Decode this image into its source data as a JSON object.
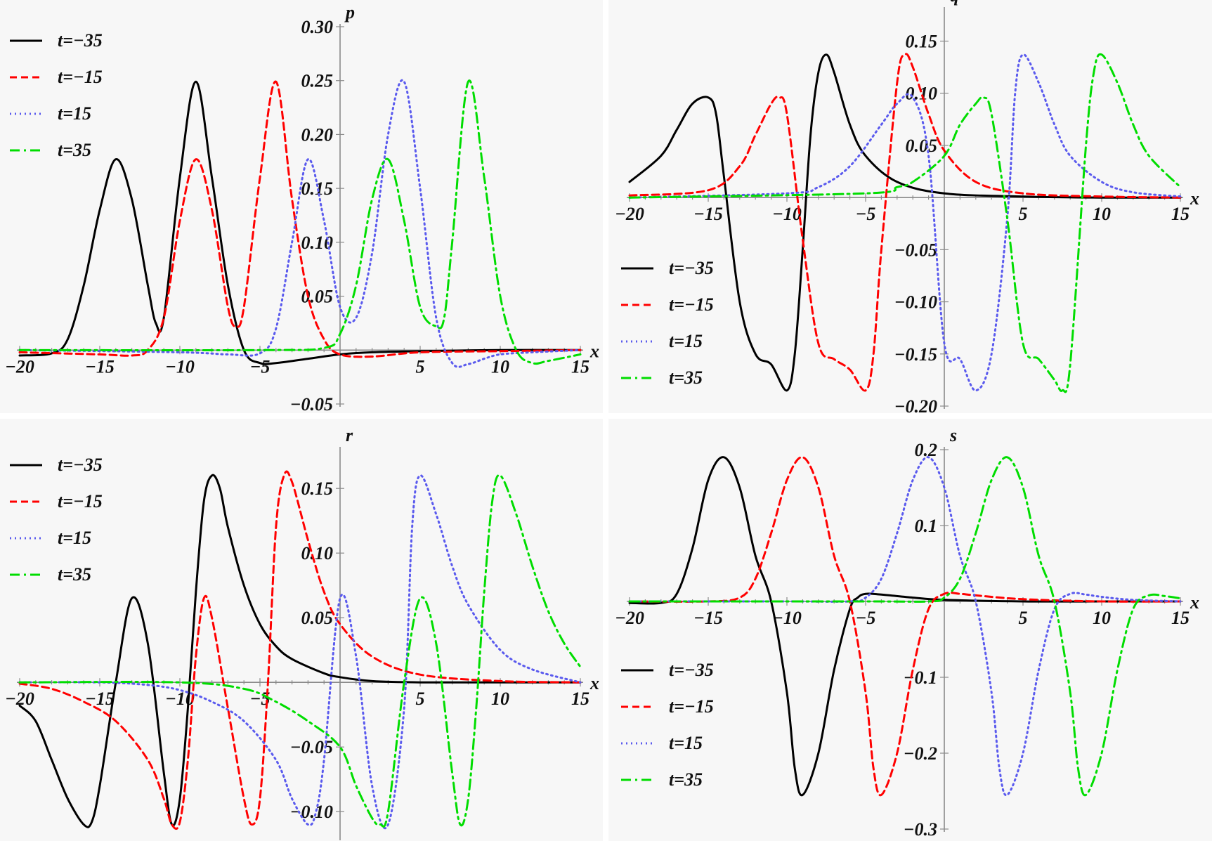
{
  "chart_data": [
    {
      "id": "p",
      "type": "line",
      "ylabel": "p",
      "xlabel": "x",
      "xlim": [
        -20,
        15
      ],
      "ylim": [
        -0.05,
        0.3
      ],
      "xticks": [
        -20,
        -15,
        -10,
        -5,
        5,
        10,
        15
      ],
      "xtick_labels": [
        "−20",
        "−15",
        "−10",
        "−5",
        "5",
        "10",
        "15"
      ],
      "yticks": [
        -0.05,
        0.05,
        0.1,
        0.15,
        0.2,
        0.25,
        0.3
      ],
      "ytick_labels": [
        "−0.05",
        "0.05",
        "0.10",
        "0.15",
        "0.20",
        "0.25",
        "0.30"
      ],
      "legend_position": "top-left",
      "series": [
        {
          "name": "t=−35",
          "color": "#000000",
          "style": "solid",
          "x": [
            -20,
            -18,
            -17,
            -16,
            -15,
            -14,
            -13,
            -12,
            -11.5,
            -11,
            -10,
            -9,
            -8,
            -7,
            -6,
            -5,
            -4,
            -2,
            0,
            2,
            5,
            10,
            15
          ],
          "y": [
            -0.005,
            -0.003,
            0.01,
            0.06,
            0.13,
            0.177,
            0.14,
            0.06,
            0.025,
            0.03,
            0.16,
            0.249,
            0.16,
            0.06,
            0.0,
            -0.012,
            -0.012,
            -0.008,
            -0.004,
            -0.002,
            -0.001,
            0.0,
            0.0
          ]
        },
        {
          "name": "t=−15",
          "color": "#ff0000",
          "style": "dashed",
          "x": [
            -20,
            -15,
            -13,
            -12,
            -11,
            -10,
            -9,
            -8,
            -7,
            -6.5,
            -6,
            -5,
            -4,
            -3,
            -2,
            -1,
            0,
            2,
            5,
            10,
            15
          ],
          "y": [
            -0.002,
            -0.004,
            -0.005,
            0.0,
            0.03,
            0.12,
            0.177,
            0.13,
            0.04,
            0.022,
            0.04,
            0.16,
            0.249,
            0.14,
            0.05,
            0.01,
            -0.004,
            -0.006,
            -0.002,
            -0.001,
            0.0
          ]
        },
        {
          "name": "t=15",
          "color": "#5a5aee",
          "style": "dotted",
          "x": [
            -20,
            -10,
            -7,
            -5,
            -4,
            -3,
            -2,
            -1,
            0,
            1,
            2,
            3,
            4,
            5,
            6,
            7,
            8,
            9,
            10,
            12,
            15
          ],
          "y": [
            0.0,
            -0.002,
            -0.004,
            -0.003,
            0.02,
            0.1,
            0.177,
            0.12,
            0.04,
            0.03,
            0.09,
            0.2,
            0.249,
            0.15,
            0.03,
            -0.012,
            -0.013,
            -0.008,
            -0.004,
            -0.002,
            0.0
          ]
        },
        {
          "name": "t=35",
          "color": "#00dd00",
          "style": "dashdot",
          "x": [
            -20,
            -5,
            -1,
            0,
            1,
            2,
            3,
            4,
            5,
            6,
            6.5,
            7,
            8,
            9,
            10,
            11,
            12,
            13,
            15
          ],
          "y": [
            0.0,
            0.0,
            0.002,
            0.015,
            0.06,
            0.14,
            0.177,
            0.12,
            0.04,
            0.022,
            0.03,
            0.1,
            0.249,
            0.16,
            0.05,
            0.0,
            -0.012,
            -0.01,
            -0.004
          ]
        }
      ]
    },
    {
      "id": "q",
      "type": "line",
      "ylabel": "q",
      "xlabel": "x",
      "xlim": [
        -20,
        15
      ],
      "ylim": [
        -0.2,
        0.18
      ],
      "xticks": [
        -20,
        -15,
        -10,
        -5,
        5,
        10,
        15
      ],
      "xtick_labels": [
        "−20",
        "−15",
        "−10",
        "−5",
        "5",
        "10",
        "15"
      ],
      "yticks": [
        -0.2,
        -0.15,
        -0.1,
        -0.05,
        0.05,
        0.1,
        0.15
      ],
      "ytick_labels": [
        "−0.20",
        "−0.15",
        "−0.10",
        "−0.05",
        "0.05",
        "0.10",
        "0.15"
      ],
      "legend_position": "bottom-left",
      "series": [
        {
          "name": "t=−35",
          "color": "#000000",
          "style": "solid",
          "x": [
            -20,
            -18,
            -17,
            -16,
            -15,
            -14.5,
            -14,
            -13,
            -12,
            -11,
            -10,
            -9.5,
            -9,
            -8.5,
            -8,
            -7.5,
            -7,
            -6,
            -5,
            -3,
            0,
            5,
            10,
            15
          ],
          "y": [
            0.015,
            0.04,
            0.065,
            0.09,
            0.096,
            0.08,
            0.02,
            -0.1,
            -0.15,
            -0.16,
            -0.185,
            -0.15,
            -0.05,
            0.06,
            0.12,
            0.137,
            0.12,
            0.07,
            0.04,
            0.015,
            0.004,
            0.001,
            0.0,
            0.0
          ]
        },
        {
          "name": "t=−15",
          "color": "#ff0000",
          "style": "dashed",
          "x": [
            -20,
            -15,
            -13,
            -12,
            -11,
            -10.5,
            -10,
            -9,
            -8,
            -7,
            -6,
            -5,
            -4.5,
            -4,
            -3,
            -2.5,
            -2,
            -1,
            0,
            2,
            5,
            10,
            15
          ],
          "y": [
            0.002,
            0.007,
            0.03,
            0.06,
            0.09,
            0.096,
            0.08,
            -0.04,
            -0.14,
            -0.155,
            -0.165,
            -0.185,
            -0.15,
            -0.05,
            0.11,
            0.137,
            0.125,
            0.08,
            0.045,
            0.015,
            0.004,
            0.001,
            0.0
          ]
        },
        {
          "name": "t=15",
          "color": "#5a5aee",
          "style": "dotted",
          "x": [
            -20,
            -10,
            -8,
            -6,
            -4,
            -3,
            -2,
            -1,
            0,
            1,
            2,
            3,
            4,
            4.5,
            5,
            6,
            7,
            8,
            10,
            12,
            15
          ],
          "y": [
            0.0,
            0.004,
            0.01,
            0.03,
            0.07,
            0.09,
            0.096,
            0.04,
            -0.14,
            -0.155,
            -0.185,
            -0.15,
            -0.02,
            0.1,
            0.137,
            0.11,
            0.07,
            0.04,
            0.015,
            0.005,
            0.001
          ]
        },
        {
          "name": "t=35",
          "color": "#00dd00",
          "style": "dashdot",
          "x": [
            -20,
            -5,
            -3,
            -2,
            0,
            1,
            2,
            2.5,
            3,
            4,
            5,
            6,
            7,
            7.5,
            8,
            9,
            9.5,
            10,
            11,
            12,
            13,
            15
          ],
          "y": [
            0.0,
            0.004,
            0.01,
            0.015,
            0.04,
            0.07,
            0.09,
            0.096,
            0.08,
            -0.02,
            -0.14,
            -0.155,
            -0.175,
            -0.185,
            -0.16,
            0.05,
            0.12,
            0.137,
            0.11,
            0.07,
            0.04,
            0.01
          ]
        }
      ]
    },
    {
      "id": "r",
      "type": "line",
      "ylabel": "r",
      "xlabel": "x",
      "xlim": [
        -20,
        15
      ],
      "ylim": [
        -0.12,
        0.18
      ],
      "xticks": [
        -20,
        -15,
        -10,
        -5,
        5,
        10,
        15
      ],
      "xtick_labels": [
        "−20",
        "−15",
        "−10",
        "−5",
        "5",
        "10",
        "15"
      ],
      "yticks": [
        -0.1,
        -0.05,
        0.05,
        0.1,
        0.15
      ],
      "ytick_labels": [
        "−0.10",
        "−0.05",
        "0.05",
        "0.10",
        "0.15"
      ],
      "legend_position": "top-left",
      "series": [
        {
          "name": "t=−35",
          "color": "#000000",
          "style": "solid",
          "x": [
            -20,
            -19,
            -18,
            -17,
            -16,
            -15.5,
            -15,
            -14,
            -13,
            -12,
            -11,
            -10.5,
            -10,
            -9.5,
            -9,
            -8.5,
            -8,
            -7.5,
            -7,
            -6,
            -5,
            -4,
            -3,
            -1,
            0,
            2,
            5,
            10,
            15
          ],
          "y": [
            -0.018,
            -0.03,
            -0.06,
            -0.09,
            -0.11,
            -0.108,
            -0.08,
            0.0,
            0.065,
            0.03,
            -0.07,
            -0.11,
            -0.09,
            -0.02,
            0.07,
            0.14,
            0.16,
            0.15,
            0.12,
            0.075,
            0.045,
            0.028,
            0.018,
            0.007,
            0.004,
            0.001,
            0.0,
            0.0,
            0.0
          ]
        },
        {
          "name": "t=−15",
          "color": "#ff0000",
          "style": "dashed",
          "x": [
            -20,
            -18,
            -16,
            -14,
            -12,
            -11,
            -10.5,
            -10,
            -9.5,
            -9,
            -8.5,
            -8,
            -7,
            -6,
            -5.5,
            -5,
            -4.5,
            -4,
            -3.5,
            -3,
            -2,
            -1,
            0,
            2,
            5,
            10,
            15
          ],
          "y": [
            -0.001,
            -0.005,
            -0.015,
            -0.03,
            -0.06,
            -0.09,
            -0.11,
            -0.108,
            -0.06,
            0.02,
            0.065,
            0.05,
            -0.02,
            -0.09,
            -0.11,
            -0.09,
            0.0,
            0.12,
            0.16,
            0.155,
            0.11,
            0.07,
            0.045,
            0.02,
            0.006,
            0.001,
            0.0
          ]
        },
        {
          "name": "t=15",
          "color": "#5a5aee",
          "style": "dotted",
          "x": [
            -20,
            -15,
            -12,
            -10,
            -8,
            -6,
            -4,
            -3,
            -2,
            -1.5,
            -1,
            0,
            1,
            2,
            3,
            4,
            4.5,
            5,
            6,
            7,
            8,
            10,
            12,
            15
          ],
          "y": [
            0.0,
            0.0,
            -0.002,
            -0.006,
            -0.015,
            -0.03,
            -0.06,
            -0.09,
            -0.11,
            -0.1,
            -0.06,
            0.065,
            0.02,
            -0.08,
            -0.11,
            -0.02,
            0.12,
            0.16,
            0.13,
            0.09,
            0.06,
            0.025,
            0.01,
            0.0
          ]
        },
        {
          "name": "t=35",
          "color": "#00dd00",
          "style": "dashdot",
          "x": [
            -20,
            -10,
            -6,
            -4,
            -2,
            0,
            1,
            2,
            2.5,
            3,
            4,
            5,
            6,
            7,
            7.5,
            8,
            8.5,
            9,
            9.5,
            10,
            11,
            12,
            13,
            14,
            15
          ],
          "y": [
            0.0,
            0.0,
            -0.005,
            -0.015,
            -0.03,
            -0.05,
            -0.08,
            -0.105,
            -0.11,
            -0.1,
            0.0,
            0.065,
            0.03,
            -0.07,
            -0.11,
            -0.09,
            -0.02,
            0.07,
            0.14,
            0.16,
            0.13,
            0.09,
            0.055,
            0.03,
            0.012
          ]
        }
      ]
    },
    {
      "id": "s",
      "type": "line",
      "ylabel": "s",
      "xlabel": "x",
      "xlim": [
        -20,
        15
      ],
      "ylim": [
        -0.3,
        0.2
      ],
      "xticks": [
        -20,
        -15,
        -10,
        -5,
        5,
        10,
        15
      ],
      "xtick_labels": [
        "−20",
        "−15",
        "−10",
        "−5",
        "5",
        "10",
        "15"
      ],
      "yticks": [
        -0.3,
        -0.2,
        -0.1,
        0.1,
        0.2
      ],
      "ytick_labels": [
        "−0.3",
        "−0.2",
        "−0.1",
        "0.1",
        "0.2"
      ],
      "legend_position": "bottom-left",
      "series": [
        {
          "name": "t=−35",
          "color": "#000000",
          "style": "solid",
          "x": [
            -20,
            -18,
            -17,
            -16,
            -15,
            -14,
            -13,
            -12,
            -11,
            -10,
            -9.5,
            -9,
            -8,
            -7,
            -6,
            -5.5,
            -5,
            -4,
            -2,
            0,
            5,
            10,
            15
          ],
          "y": [
            -0.002,
            -0.002,
            0.01,
            0.07,
            0.16,
            0.19,
            0.15,
            0.06,
            0.0,
            -0.12,
            -0.22,
            -0.255,
            -0.2,
            -0.09,
            -0.01,
            0.005,
            0.01,
            0.009,
            0.005,
            0.002,
            0.0,
            0.0,
            0.0
          ]
        },
        {
          "name": "t=−15",
          "color": "#ff0000",
          "style": "dashed",
          "x": [
            -20,
            -15,
            -13,
            -12,
            -11,
            -10,
            -9,
            -8,
            -7,
            -6,
            -5,
            -4.5,
            -4,
            -3,
            -2,
            -1,
            0,
            1,
            2,
            5,
            10,
            15
          ],
          "y": [
            0.0,
            0.0,
            0.005,
            0.03,
            0.09,
            0.16,
            0.19,
            0.15,
            0.06,
            0.0,
            -0.12,
            -0.22,
            -0.255,
            -0.2,
            -0.09,
            -0.01,
            0.01,
            0.01,
            0.008,
            0.003,
            0.0,
            0.0
          ]
        },
        {
          "name": "t=15",
          "color": "#5a5aee",
          "style": "dotted",
          "x": [
            -20,
            -10,
            -6,
            -5,
            -4,
            -3,
            -2,
            -1,
            0,
            1,
            2,
            3,
            3.5,
            4,
            5,
            6,
            7,
            8,
            9,
            10,
            12,
            15
          ],
          "y": [
            0.0,
            0.0,
            0.0,
            0.005,
            0.03,
            0.09,
            0.16,
            0.19,
            0.15,
            0.06,
            0.0,
            -0.12,
            -0.22,
            -0.255,
            -0.2,
            -0.09,
            -0.01,
            0.01,
            0.009,
            0.006,
            0.002,
            0.0
          ]
        },
        {
          "name": "t=35",
          "color": "#00dd00",
          "style": "dashdot",
          "x": [
            -20,
            -5,
            -1,
            0,
            1,
            2,
            3,
            4,
            5,
            6,
            7,
            8,
            8.5,
            9,
            10,
            11,
            12,
            13,
            14,
            15
          ],
          "y": [
            0.0,
            0.0,
            0.0,
            0.005,
            0.03,
            0.09,
            0.16,
            0.19,
            0.15,
            0.06,
            0.0,
            -0.12,
            -0.22,
            -0.255,
            -0.2,
            -0.09,
            -0.01,
            0.008,
            0.007,
            0.004
          ]
        }
      ]
    }
  ]
}
